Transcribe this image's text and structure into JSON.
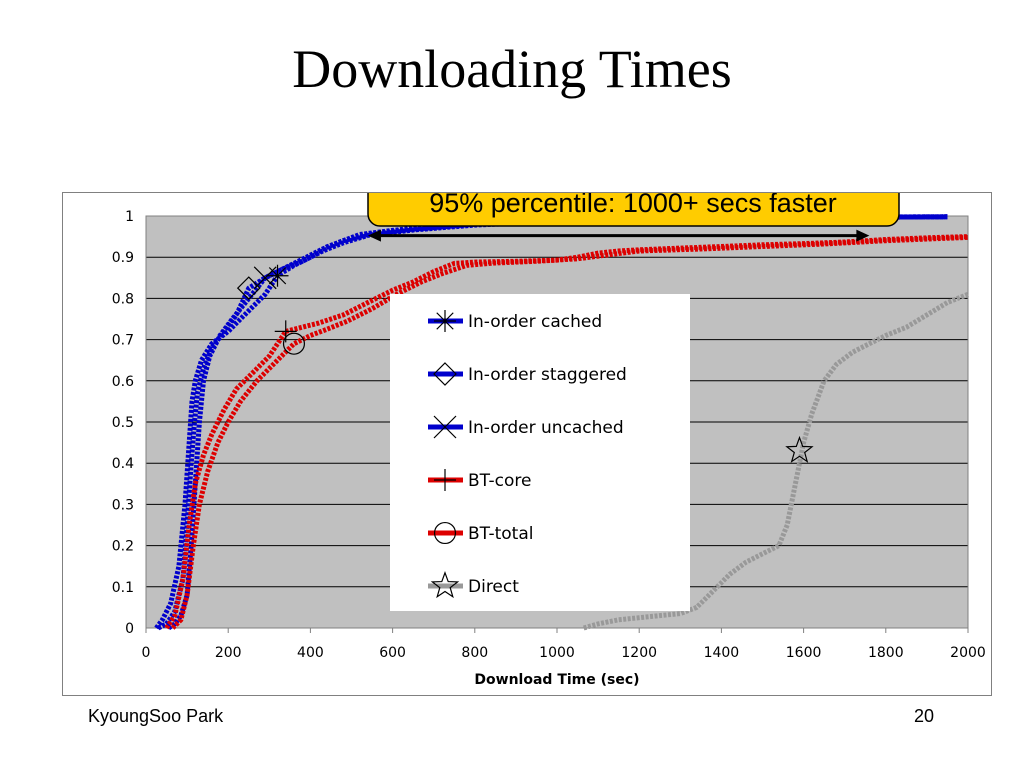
{
  "slide": {
    "title": "Downloading Times",
    "footer_left": "KyoungSoo Park",
    "footer_right": "20"
  },
  "chart_data": {
    "type": "line",
    "xlabel": "Download Time (sec)",
    "ylabel": "",
    "xlim": [
      0,
      2000
    ],
    "ylim": [
      0,
      1
    ],
    "xticks": [
      "0",
      "200",
      "400",
      "600",
      "800",
      "1000",
      "1200",
      "1400",
      "1600",
      "1800",
      "2000"
    ],
    "yticks": [
      "0",
      "0.1",
      "0.2",
      "0.3",
      "0.4",
      "0.5",
      "0.6",
      "0.7",
      "0.8",
      "0.9",
      "1"
    ],
    "grid": "horizontal",
    "plot_background": "#c0c0c0",
    "legend_position": "center",
    "annotation": {
      "text": "95% percentile: 1000+ secs faster",
      "background": "#ffcc00",
      "arrow_from_x": 540,
      "arrow_to_x": 1760,
      "arrow_y": 0.95
    },
    "series": [
      {
        "name": "In-order cached",
        "color": "#0000cc",
        "marker": "asterisk",
        "marker_at": [
          320,
          0.855
        ],
        "points": [
          [
            25,
            0
          ],
          [
            40,
            0.02
          ],
          [
            60,
            0.06
          ],
          [
            80,
            0.15
          ],
          [
            95,
            0.3
          ],
          [
            105,
            0.45
          ],
          [
            112,
            0.55
          ],
          [
            120,
            0.6
          ],
          [
            135,
            0.65
          ],
          [
            160,
            0.69
          ],
          [
            200,
            0.72
          ],
          [
            230,
            0.75
          ],
          [
            260,
            0.78
          ],
          [
            290,
            0.81
          ],
          [
            320,
            0.855
          ],
          [
            360,
            0.88
          ],
          [
            400,
            0.9
          ],
          [
            440,
            0.925
          ],
          [
            480,
            0.94
          ],
          [
            520,
            0.955
          ],
          [
            600,
            0.965
          ],
          [
            700,
            0.975
          ],
          [
            900,
            0.985
          ],
          [
            1100,
            0.99
          ],
          [
            1400,
            0.995
          ],
          [
            1700,
            0.997
          ],
          [
            1950,
            0.998
          ]
        ]
      },
      {
        "name": "In-order staggered",
        "color": "#0000cc",
        "marker": "diamond",
        "marker_at": [
          250,
          0.825
        ],
        "points": [
          [
            30,
            0
          ],
          [
            50,
            0.01
          ],
          [
            70,
            0.04
          ],
          [
            90,
            0.12
          ],
          [
            100,
            0.25
          ],
          [
            110,
            0.4
          ],
          [
            118,
            0.5
          ],
          [
            125,
            0.57
          ],
          [
            140,
            0.63
          ],
          [
            160,
            0.68
          ],
          [
            190,
            0.72
          ],
          [
            220,
            0.76
          ],
          [
            250,
            0.825
          ],
          [
            290,
            0.85
          ],
          [
            330,
            0.87
          ],
          [
            380,
            0.895
          ],
          [
            430,
            0.92
          ],
          [
            480,
            0.94
          ],
          [
            540,
            0.955
          ],
          [
            640,
            0.967
          ],
          [
            800,
            0.98
          ],
          [
            1000,
            0.988
          ],
          [
            1300,
            0.994
          ],
          [
            1600,
            0.997
          ],
          [
            1950,
            0.998
          ]
        ]
      },
      {
        "name": "In-order uncached",
        "color": "#0000cc",
        "marker": "x",
        "marker_at": [
          290,
          0.85
        ],
        "points": [
          [
            55,
            0
          ],
          [
            70,
            0.01
          ],
          [
            85,
            0.03
          ],
          [
            100,
            0.08
          ],
          [
            110,
            0.2
          ],
          [
            120,
            0.35
          ],
          [
            130,
            0.5
          ],
          [
            140,
            0.6
          ],
          [
            155,
            0.66
          ],
          [
            180,
            0.71
          ],
          [
            210,
            0.75
          ],
          [
            250,
            0.8
          ],
          [
            290,
            0.85
          ],
          [
            330,
            0.87
          ],
          [
            380,
            0.89
          ],
          [
            430,
            0.915
          ],
          [
            480,
            0.935
          ],
          [
            540,
            0.953
          ],
          [
            650,
            0.966
          ],
          [
            800,
            0.978
          ],
          [
            1000,
            0.987
          ],
          [
            1300,
            0.993
          ],
          [
            1600,
            0.996
          ],
          [
            1950,
            0.998
          ]
        ]
      },
      {
        "name": "BT-core",
        "color": "#dd0000",
        "marker": "plus",
        "marker_at": [
          340,
          0.72
        ],
        "points": [
          [
            50,
            0
          ],
          [
            70,
            0.03
          ],
          [
            90,
            0.12
          ],
          [
            105,
            0.25
          ],
          [
            120,
            0.35
          ],
          [
            140,
            0.42
          ],
          [
            160,
            0.47
          ],
          [
            190,
            0.53
          ],
          [
            220,
            0.58
          ],
          [
            260,
            0.62
          ],
          [
            300,
            0.66
          ],
          [
            340,
            0.72
          ],
          [
            380,
            0.73
          ],
          [
            420,
            0.74
          ],
          [
            480,
            0.76
          ],
          [
            540,
            0.79
          ],
          [
            600,
            0.82
          ],
          [
            650,
            0.84
          ],
          [
            700,
            0.865
          ],
          [
            750,
            0.885
          ],
          [
            800,
            0.888
          ],
          [
            900,
            0.89
          ],
          [
            1000,
            0.893
          ],
          [
            1050,
            0.9
          ],
          [
            1100,
            0.91
          ],
          [
            1150,
            0.915
          ],
          [
            1200,
            0.918
          ],
          [
            1300,
            0.922
          ],
          [
            1400,
            0.926
          ],
          [
            1500,
            0.93
          ],
          [
            1600,
            0.933
          ],
          [
            1700,
            0.937
          ],
          [
            1800,
            0.943
          ],
          [
            1900,
            0.947
          ],
          [
            2000,
            0.95
          ]
        ]
      },
      {
        "name": "BT-total",
        "color": "#dd0000",
        "marker": "circle",
        "marker_at": [
          360,
          0.69
        ],
        "points": [
          [
            65,
            0
          ],
          [
            85,
            0.02
          ],
          [
            100,
            0.08
          ],
          [
            115,
            0.2
          ],
          [
            130,
            0.3
          ],
          [
            150,
            0.38
          ],
          [
            175,
            0.45
          ],
          [
            200,
            0.5
          ],
          [
            230,
            0.55
          ],
          [
            270,
            0.6
          ],
          [
            320,
            0.65
          ],
          [
            360,
            0.69
          ],
          [
            400,
            0.71
          ],
          [
            440,
            0.725
          ],
          [
            490,
            0.745
          ],
          [
            550,
            0.775
          ],
          [
            610,
            0.81
          ],
          [
            670,
            0.84
          ],
          [
            720,
            0.86
          ],
          [
            780,
            0.88
          ],
          [
            850,
            0.886
          ],
          [
            950,
            0.89
          ],
          [
            1050,
            0.896
          ],
          [
            1120,
            0.905
          ],
          [
            1200,
            0.915
          ],
          [
            1350,
            0.92
          ],
          [
            1500,
            0.926
          ],
          [
            1650,
            0.932
          ],
          [
            1800,
            0.94
          ],
          [
            2000,
            0.948
          ]
        ]
      },
      {
        "name": "Direct",
        "color": "#999999",
        "marker": "star",
        "marker_at": [
          1590,
          0.43
        ],
        "points": [
          [
            1065,
            0
          ],
          [
            1100,
            0.01
          ],
          [
            1150,
            0.02
          ],
          [
            1200,
            0.025
          ],
          [
            1250,
            0.03
          ],
          [
            1300,
            0.035
          ],
          [
            1340,
            0.05
          ],
          [
            1380,
            0.09
          ],
          [
            1420,
            0.13
          ],
          [
            1460,
            0.16
          ],
          [
            1500,
            0.18
          ],
          [
            1540,
            0.2
          ],
          [
            1560,
            0.25
          ],
          [
            1580,
            0.35
          ],
          [
            1600,
            0.45
          ],
          [
            1620,
            0.52
          ],
          [
            1650,
            0.6
          ],
          [
            1680,
            0.64
          ],
          [
            1720,
            0.67
          ],
          [
            1760,
            0.69
          ],
          [
            1800,
            0.71
          ],
          [
            1850,
            0.73
          ],
          [
            1900,
            0.76
          ],
          [
            1950,
            0.79
          ],
          [
            2000,
            0.81
          ]
        ]
      }
    ]
  }
}
